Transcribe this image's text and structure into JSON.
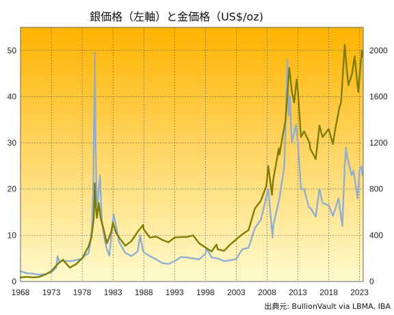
{
  "chart_data": {
    "type": "line",
    "title": "銀価格（左軸）と金価格（US$/oz)",
    "source": "出典元: BullionVault via LBMA, IBA",
    "x_range": [
      1968,
      2023.6
    ],
    "x_ticks": [
      "1968",
      "1973",
      "1978",
      "1983",
      "1988",
      "1993",
      "1998",
      "2003",
      "2008",
      "2013",
      "2018",
      "2023"
    ],
    "left_axis": {
      "ylim": [
        0,
        55
      ],
      "ticks": [
        "0",
        "10",
        "20",
        "30",
        "40",
        "50"
      ]
    },
    "right_axis": {
      "ylim": [
        0,
        2200
      ],
      "ticks": [
        "0",
        "400",
        "800",
        "1200",
        "1600",
        "2000"
      ]
    },
    "background": {
      "top_color": "#FFB300",
      "bottom_color": "#FFFACD"
    },
    "series": [
      {
        "key": "silver",
        "axis": "left",
        "color": "#8DAED6",
        "points": [
          [
            1968,
            2.2
          ],
          [
            1969,
            1.8
          ],
          [
            1970,
            1.7
          ],
          [
            1971,
            1.5
          ],
          [
            1972,
            1.6
          ],
          [
            1973,
            2.0
          ],
          [
            1973.8,
            3.0
          ],
          [
            1974,
            5.5
          ],
          [
            1974.3,
            4.3
          ],
          [
            1975,
            4.5
          ],
          [
            1976,
            4.4
          ],
          [
            1977,
            4.6
          ],
          [
            1978,
            5.0
          ],
          [
            1978.6,
            5.8
          ],
          [
            1979,
            6.0
          ],
          [
            1979.3,
            8.0
          ],
          [
            1979.6,
            12.0
          ],
          [
            1979.8,
            20.0
          ],
          [
            1980.05,
            49.5
          ],
          [
            1980.2,
            28.0
          ],
          [
            1980.4,
            15.0
          ],
          [
            1980.7,
            20.0
          ],
          [
            1980.9,
            23.0
          ],
          [
            1981.2,
            13.0
          ],
          [
            1981.6,
            9.5
          ],
          [
            1982,
            7.0
          ],
          [
            1982.4,
            5.6
          ],
          [
            1982.7,
            9.5
          ],
          [
            1983.1,
            14.5
          ],
          [
            1983.5,
            12.0
          ],
          [
            1984,
            8.5
          ],
          [
            1985,
            6.2
          ],
          [
            1986,
            5.5
          ],
          [
            1987,
            6.5
          ],
          [
            1987.4,
            10.0
          ],
          [
            1987.8,
            7.0
          ],
          [
            1988,
            6.3
          ],
          [
            1989,
            5.5
          ],
          [
            1990,
            4.8
          ],
          [
            1991,
            4.0
          ],
          [
            1992,
            3.8
          ],
          [
            1993,
            4.4
          ],
          [
            1993.7,
            5.0
          ],
          [
            1994,
            5.3
          ],
          [
            1995,
            5.2
          ],
          [
            1996,
            5.0
          ],
          [
            1997,
            4.8
          ],
          [
            1998,
            6.0
          ],
          [
            1998.2,
            7.2
          ],
          [
            1999,
            5.2
          ],
          [
            2000,
            5.0
          ],
          [
            2001,
            4.4
          ],
          [
            2002,
            4.6
          ],
          [
            2003,
            4.9
          ],
          [
            2004,
            7.0
          ],
          [
            2005,
            7.3
          ],
          [
            2006,
            11.5
          ],
          [
            2007,
            13.4
          ],
          [
            2008.2,
            20.0
          ],
          [
            2008.9,
            9.5
          ],
          [
            2009,
            12.0
          ],
          [
            2010,
            18.0
          ],
          [
            2010.8,
            25.0
          ],
          [
            2011.3,
            48.0
          ],
          [
            2011.5,
            36.0
          ],
          [
            2011.7,
            40.0
          ],
          [
            2012,
            30.0
          ],
          [
            2012.7,
            34.0
          ],
          [
            2013,
            30.0
          ],
          [
            2013.5,
            20.0
          ],
          [
            2014,
            20.0
          ],
          [
            2014.8,
            16.0
          ],
          [
            2015,
            16.0
          ],
          [
            2015.9,
            14.0
          ],
          [
            2016.5,
            20.0
          ],
          [
            2017,
            17.0
          ],
          [
            2018,
            16.5
          ],
          [
            2018.7,
            14.2
          ],
          [
            2019,
            15.5
          ],
          [
            2019.6,
            18.0
          ],
          [
            2020.2,
            12.0
          ],
          [
            2020.6,
            25.0
          ],
          [
            2020.8,
            29.0
          ],
          [
            2021,
            27.0
          ],
          [
            2021.7,
            23.0
          ],
          [
            2022,
            24.0
          ],
          [
            2022.7,
            18.0
          ],
          [
            2023,
            24.0
          ],
          [
            2023.3,
            25.0
          ],
          [
            2023.5,
            23.0
          ]
        ]
      },
      {
        "key": "gold",
        "axis": "right",
        "color": "#7E7D00",
        "points": [
          [
            1968,
            35
          ],
          [
            1969,
            40
          ],
          [
            1970,
            36
          ],
          [
            1971,
            40
          ],
          [
            1972,
            60
          ],
          [
            1973,
            90
          ],
          [
            1974,
            150
          ],
          [
            1974.9,
            190
          ],
          [
            1975,
            180
          ],
          [
            1976,
            120
          ],
          [
            1977,
            150
          ],
          [
            1978,
            200
          ],
          [
            1979,
            300
          ],
          [
            1979.5,
            380
          ],
          [
            1979.9,
            550
          ],
          [
            1980.05,
            850
          ],
          [
            1980.2,
            650
          ],
          [
            1980.4,
            550
          ],
          [
            1980.7,
            680
          ],
          [
            1981,
            550
          ],
          [
            1981.5,
            450
          ],
          [
            1982,
            330
          ],
          [
            1982.7,
            430
          ],
          [
            1983,
            510
          ],
          [
            1983.5,
            420
          ],
          [
            1984,
            380
          ],
          [
            1985,
            310
          ],
          [
            1986,
            350
          ],
          [
            1987,
            430
          ],
          [
            1987.9,
            490
          ],
          [
            1988,
            450
          ],
          [
            1989,
            380
          ],
          [
            1990,
            390
          ],
          [
            1991,
            360
          ],
          [
            1992,
            340
          ],
          [
            1993,
            380
          ],
          [
            1994,
            385
          ],
          [
            1995,
            385
          ],
          [
            1996,
            400
          ],
          [
            1997,
            330
          ],
          [
            1998,
            295
          ],
          [
            1999,
            260
          ],
          [
            1999.8,
            320
          ],
          [
            2000,
            280
          ],
          [
            2001,
            265
          ],
          [
            2002,
            320
          ],
          [
            2003,
            365
          ],
          [
            2004,
            410
          ],
          [
            2005,
            445
          ],
          [
            2006,
            630
          ],
          [
            2007,
            700
          ],
          [
            2007.9,
            830
          ],
          [
            2008.2,
            1000
          ],
          [
            2008.8,
            750
          ],
          [
            2009,
            880
          ],
          [
            2009.9,
            1150
          ],
          [
            2010,
            1100
          ],
          [
            2011,
            1400
          ],
          [
            2011.6,
            1850
          ],
          [
            2012,
            1650
          ],
          [
            2012.4,
            1550
          ],
          [
            2012.8,
            1750
          ],
          [
            2013,
            1650
          ],
          [
            2013.5,
            1250
          ],
          [
            2014,
            1300
          ],
          [
            2014.9,
            1200
          ],
          [
            2015,
            1150
          ],
          [
            2015.9,
            1060
          ],
          [
            2016.5,
            1350
          ],
          [
            2017,
            1250
          ],
          [
            2018,
            1320
          ],
          [
            2018.7,
            1190
          ],
          [
            2019,
            1300
          ],
          [
            2019.7,
            1500
          ],
          [
            2020,
            1550
          ],
          [
            2020.6,
            2050
          ],
          [
            2020.9,
            1850
          ],
          [
            2021.2,
            1700
          ],
          [
            2021.8,
            1800
          ],
          [
            2022.2,
            1950
          ],
          [
            2022.8,
            1640
          ],
          [
            2023.2,
            1900
          ],
          [
            2023.4,
            2000
          ],
          [
            2023.5,
            1950
          ]
        ]
      }
    ]
  }
}
